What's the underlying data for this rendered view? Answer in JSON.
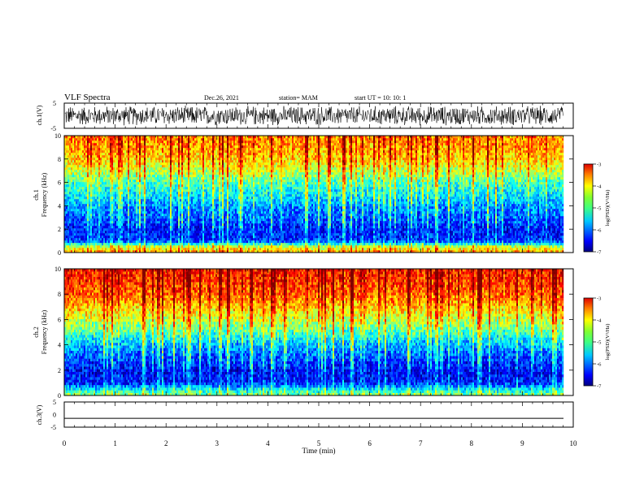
{
  "header": {
    "title": "VLF Spectra",
    "date": "Dec.26, 2021",
    "station": "station= MAM",
    "start": "start  UT =   10: 10: 1"
  },
  "chart_data": [
    {
      "type": "line",
      "ylabel": "ch.1(V)",
      "ylim": [
        -5,
        5
      ],
      "yticks": [
        "5",
        "-5"
      ],
      "xlim": [
        0,
        10
      ],
      "description": "dense noise waveform oscillating between about -4 and 4 V"
    },
    {
      "type": "heatmap",
      "ylabel_line1": "ch.1",
      "ylabel_line2": "Frequency  (kHz)",
      "ylim": [
        0,
        10
      ],
      "yticks": [
        "0",
        "2",
        "4",
        "6",
        "8",
        "10"
      ],
      "xlim": [
        0,
        10
      ],
      "colorbar": {
        "label": "log(PSD)(V²/Hz)",
        "range": [
          -7,
          -3
        ],
        "ticks": [
          "-3",
          "-4",
          "-5",
          "-6",
          "-7"
        ]
      },
      "profile": {
        "frequency_kHz": [
          0,
          0.5,
          1,
          2,
          3,
          4,
          5,
          6,
          7,
          8,
          9,
          10
        ],
        "mean_logPSD": [
          -4.1,
          -4.7,
          -6.3,
          -6.4,
          -6.1,
          -5.9,
          -5.5,
          -5.2,
          -4.7,
          -4.3,
          -4.1,
          -4.0
        ]
      }
    },
    {
      "type": "heatmap",
      "ylabel_line1": "ch.2",
      "ylabel_line2": "Frequency  (kHz)",
      "ylim": [
        0,
        10
      ],
      "yticks": [
        "0",
        "2",
        "4",
        "6",
        "8",
        "10"
      ],
      "xlim": [
        0,
        10
      ],
      "colorbar": {
        "label": "log(PSD)(V²/Hz)",
        "range": [
          -7,
          -3
        ],
        "ticks": [
          "-3",
          "-4",
          "-5",
          "-6",
          "-7"
        ]
      },
      "profile": {
        "frequency_kHz": [
          0,
          0.5,
          1,
          2,
          3,
          4,
          5,
          6,
          7,
          8,
          9,
          10
        ],
        "mean_logPSD": [
          -4.9,
          -5.6,
          -6.4,
          -6.5,
          -6.2,
          -5.8,
          -5.2,
          -4.7,
          -4.3,
          -3.9,
          -3.7,
          -3.6
        ]
      }
    },
    {
      "type": "line",
      "ylabel": "ch.3(V)",
      "ylim": [
        -5,
        5
      ],
      "yticks": [
        "5",
        "0",
        "-5"
      ],
      "xlim": [
        0,
        10
      ],
      "description": "flat line",
      "x": [
        0,
        10
      ],
      "y": [
        -1.5,
        -1.5
      ]
    }
  ],
  "xaxis": {
    "label": "Time  (min)",
    "ticks": [
      "0",
      "1",
      "2",
      "3",
      "4",
      "5",
      "6",
      "7",
      "8",
      "9",
      "10"
    ]
  },
  "colors": {
    "jet": [
      "#00007f",
      "#0000ff",
      "#007fff",
      "#00ffff",
      "#7fff7f",
      "#ffff00",
      "#ff7f00",
      "#ff0000",
      "#7f0000"
    ]
  }
}
